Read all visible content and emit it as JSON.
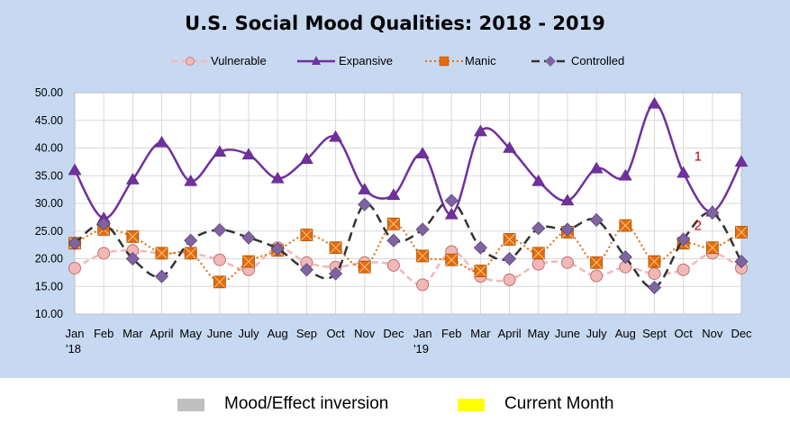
{
  "chart_data": {
    "type": "line",
    "title": "U.S. Social Mood Qualities:  2018 - 2019",
    "categories": [
      "Jan",
      "Feb",
      "Mar",
      "April",
      "May",
      "June",
      "July",
      "Aug",
      "Sep",
      "Oct",
      "Nov",
      "Dec",
      "Jan",
      "Feb",
      "Mar",
      "April",
      "May",
      "June",
      "July",
      "Aug",
      "Sept",
      "Oct",
      "Nov",
      "Dec"
    ],
    "year_labels": {
      "0": "'18",
      "12": "'19"
    },
    "ylim": [
      10,
      50
    ],
    "yticks": [
      "10.00",
      "15.00",
      "20.00",
      "25.00",
      "30.00",
      "35.00",
      "40.00",
      "45.00",
      "50.00"
    ],
    "grid": true,
    "legend_position": "top",
    "series": [
      {
        "name": "Vulnerable",
        "color": "#f2b8b8",
        "marker": "circle",
        "values": [
          18.3,
          21.0,
          21.5,
          21.0,
          21.0,
          19.8,
          18.0,
          22.0,
          19.3,
          18.5,
          19.3,
          18.8,
          15.3,
          21.3,
          16.8,
          16.2,
          19.0,
          19.3,
          16.9,
          18.5,
          17.3,
          18.0,
          21.0,
          18.3
        ]
      },
      {
        "name": "Expansive",
        "color": "#7030a0",
        "marker": "triangle",
        "values": [
          36.0,
          27.3,
          34.3,
          41.0,
          34.0,
          39.3,
          38.8,
          34.5,
          38.0,
          42.0,
          32.5,
          31.5,
          39.0,
          28.0,
          43.0,
          40.0,
          34.0,
          30.5,
          36.3,
          35.0,
          48.0,
          35.5,
          28.5,
          37.5
        ]
      },
      {
        "name": "Manic",
        "color": "#e46c0a",
        "marker": "square-x",
        "values": [
          22.8,
          25.3,
          24.0,
          21.0,
          21.0,
          15.8,
          19.5,
          21.5,
          24.3,
          22.0,
          18.5,
          26.3,
          20.5,
          19.8,
          17.8,
          23.5,
          21.0,
          24.8,
          19.3,
          26.0,
          19.5,
          22.8,
          22.0,
          24.8
        ]
      },
      {
        "name": "Controlled",
        "color": "#333333",
        "marker": "diamond",
        "values": [
          22.8,
          26.3,
          20.0,
          16.8,
          23.3,
          25.2,
          23.8,
          21.8,
          18.0,
          17.3,
          29.8,
          23.3,
          25.3,
          30.5,
          22.0,
          20.0,
          25.5,
          25.3,
          27.0,
          20.3,
          14.8,
          23.5,
          28.3,
          19.5
        ]
      }
    ],
    "annotations": [
      {
        "text": "1",
        "color": "#c00000",
        "x_index": 21,
        "y": 38.5
      },
      {
        "text": "2",
        "color": "#c00000",
        "x_index": 21,
        "y": 26.0
      }
    ]
  },
  "bottom_legend": [
    {
      "label": "Mood/Effect inversion",
      "color": "#bfbfbf"
    },
    {
      "label": "Current Month",
      "color": "#ffff00"
    }
  ]
}
